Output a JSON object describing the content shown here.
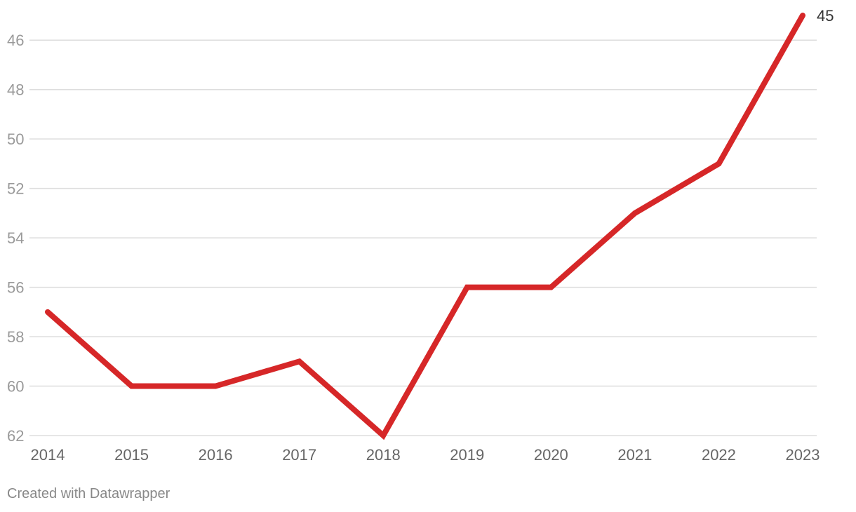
{
  "chart_data": {
    "type": "line",
    "title": "",
    "xlabel": "",
    "ylabel": "",
    "x": [
      "2014",
      "2015",
      "2016",
      "2017",
      "2018",
      "2019",
      "2020",
      "2021",
      "2022",
      "2023"
    ],
    "series": [
      {
        "values": [
          57,
          60,
          60,
          59,
          62,
          56,
          56,
          53,
          51,
          45
        ],
        "color": "#d62728"
      }
    ],
    "y_ticks": [
      46,
      48,
      50,
      52,
      54,
      56,
      58,
      60,
      62
    ],
    "ylim": [
      45,
      62
    ],
    "y_axis_inverted": true,
    "grid": true,
    "end_label": "45",
    "grid_color": "#dddddd"
  },
  "footer": {
    "credit": "Created with Datawrapper"
  }
}
